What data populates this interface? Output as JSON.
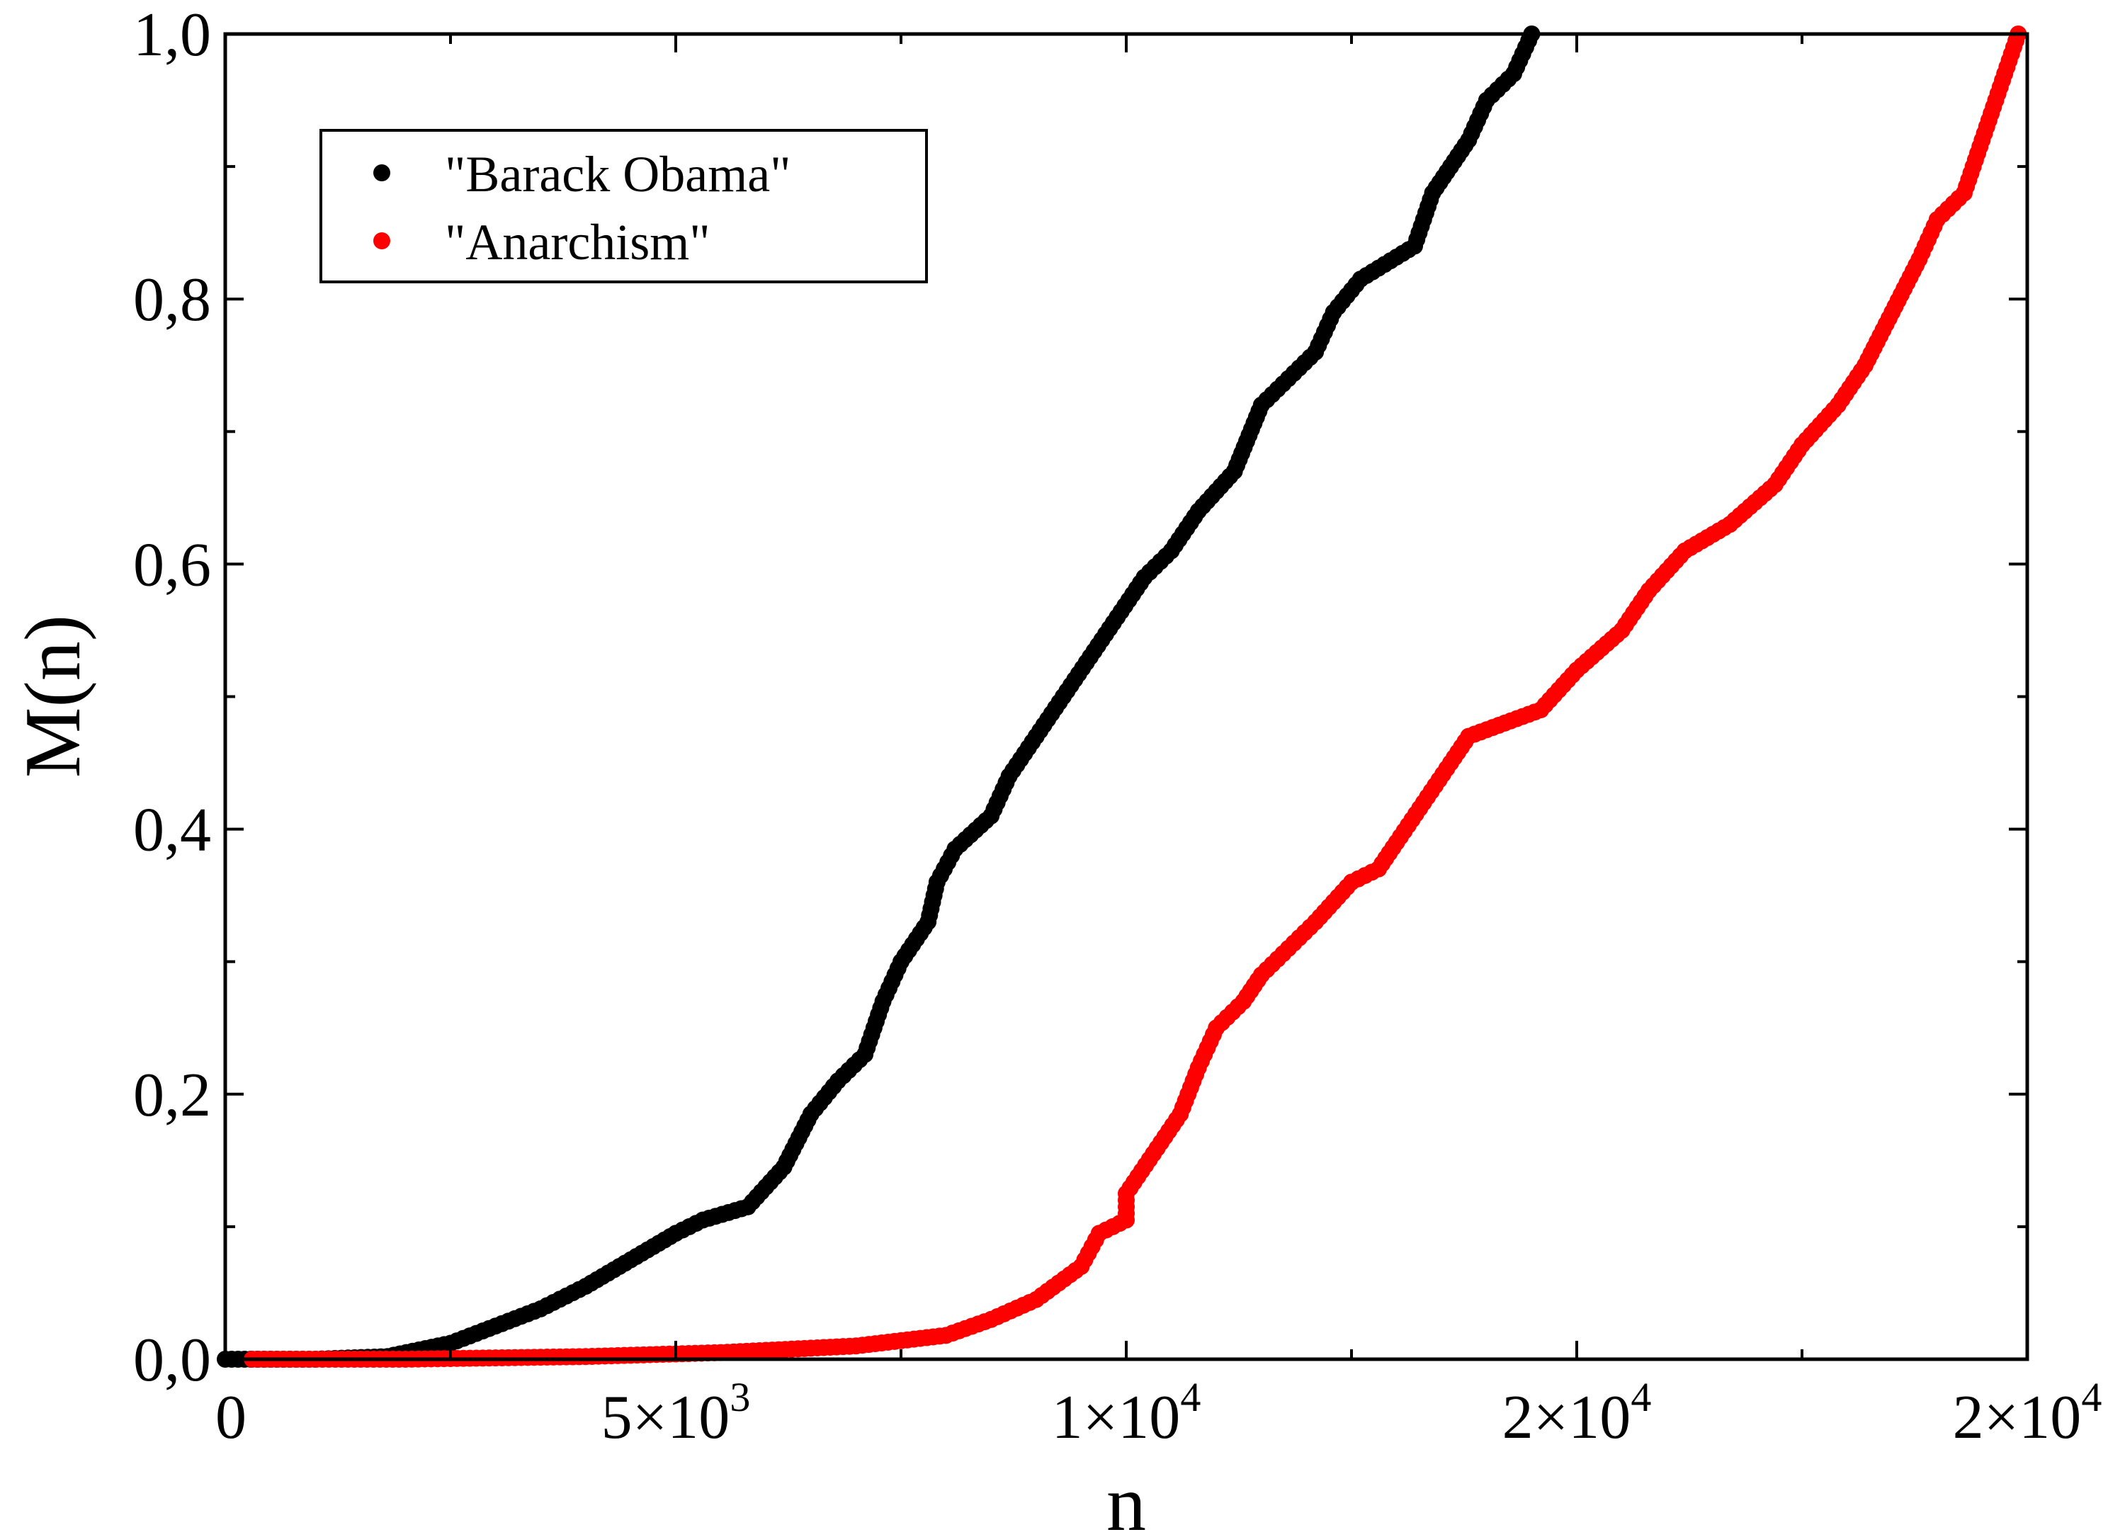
{
  "chart_data": {
    "type": "scatter",
    "title": "",
    "xlabel": "n",
    "ylabel": "M(n)",
    "xlim": [
      0,
      20000
    ],
    "ylim": [
      0,
      1.0
    ],
    "x_ticks": [
      {
        "value": 0,
        "base": "0",
        "exp": ""
      },
      {
        "value": 5000,
        "base": "5×10",
        "exp": "3"
      },
      {
        "value": 10000,
        "base": "1×10",
        "exp": "4"
      },
      {
        "value": 15000,
        "base": "2×10",
        "exp": "4"
      },
      {
        "value": 20000,
        "base": "2×10",
        "exp": "4"
      }
    ],
    "y_ticks": [
      {
        "value": 0.0,
        "label": "0,0"
      },
      {
        "value": 0.2,
        "label": "0,2"
      },
      {
        "value": 0.4,
        "label": "0,4"
      },
      {
        "value": 0.6,
        "label": "0,6"
      },
      {
        "value": 0.8,
        "label": "0,8"
      },
      {
        "value": 1.0,
        "label": "1,0"
      }
    ],
    "grid": false,
    "legend_position": "top-left",
    "series": [
      {
        "name": "\"Barack Obama\"",
        "color": "#000000",
        "points": [
          [
            0,
            0.0
          ],
          [
            1000,
            0.0
          ],
          [
            1800,
            0.002
          ],
          [
            2500,
            0.012
          ],
          [
            3000,
            0.025
          ],
          [
            3500,
            0.038
          ],
          [
            4000,
            0.055
          ],
          [
            4500,
            0.075
          ],
          [
            5000,
            0.095
          ],
          [
            5300,
            0.105
          ],
          [
            5800,
            0.115
          ],
          [
            6200,
            0.145
          ],
          [
            6500,
            0.185
          ],
          [
            6800,
            0.21
          ],
          [
            7100,
            0.23
          ],
          [
            7300,
            0.27
          ],
          [
            7500,
            0.3
          ],
          [
            7800,
            0.33
          ],
          [
            7900,
            0.36
          ],
          [
            8100,
            0.385
          ],
          [
            8500,
            0.41
          ],
          [
            8700,
            0.44
          ],
          [
            9000,
            0.47
          ],
          [
            9300,
            0.5
          ],
          [
            9600,
            0.53
          ],
          [
            9900,
            0.56
          ],
          [
            10200,
            0.59
          ],
          [
            10500,
            0.61
          ],
          [
            10800,
            0.64
          ],
          [
            11200,
            0.67
          ],
          [
            11500,
            0.72
          ],
          [
            11800,
            0.74
          ],
          [
            12100,
            0.76
          ],
          [
            12300,
            0.79
          ],
          [
            12600,
            0.815
          ],
          [
            13200,
            0.84
          ],
          [
            13400,
            0.88
          ],
          [
            13800,
            0.92
          ],
          [
            14000,
            0.95
          ],
          [
            14300,
            0.97
          ],
          [
            14500,
            1.0
          ]
        ]
      },
      {
        "name": "\"Anarchism\"",
        "color": "#ff0000",
        "points": [
          [
            300,
            0.0
          ],
          [
            2000,
            0.0
          ],
          [
            4000,
            0.002
          ],
          [
            5500,
            0.005
          ],
          [
            7000,
            0.01
          ],
          [
            8000,
            0.018
          ],
          [
            8500,
            0.03
          ],
          [
            9000,
            0.045
          ],
          [
            9500,
            0.07
          ],
          [
            9700,
            0.095
          ],
          [
            10000,
            0.105
          ],
          [
            10000,
            0.125
          ],
          [
            10300,
            0.155
          ],
          [
            10600,
            0.185
          ],
          [
            10800,
            0.22
          ],
          [
            11000,
            0.25
          ],
          [
            11300,
            0.27
          ],
          [
            11500,
            0.29
          ],
          [
            11800,
            0.31
          ],
          [
            12100,
            0.33
          ],
          [
            12500,
            0.36
          ],
          [
            12800,
            0.37
          ],
          [
            13000,
            0.39
          ],
          [
            13300,
            0.42
          ],
          [
            13600,
            0.45
          ],
          [
            13800,
            0.47
          ],
          [
            14200,
            0.48
          ],
          [
            14600,
            0.49
          ],
          [
            15000,
            0.52
          ],
          [
            15500,
            0.55
          ],
          [
            15800,
            0.58
          ],
          [
            16200,
            0.61
          ],
          [
            16700,
            0.63
          ],
          [
            17200,
            0.66
          ],
          [
            17500,
            0.69
          ],
          [
            17900,
            0.72
          ],
          [
            18200,
            0.75
          ],
          [
            18500,
            0.79
          ],
          [
            18800,
            0.83
          ],
          [
            19000,
            0.86
          ],
          [
            19300,
            0.88
          ],
          [
            19500,
            0.92
          ],
          [
            19700,
            0.96
          ],
          [
            19900,
            1.0
          ]
        ]
      }
    ]
  }
}
